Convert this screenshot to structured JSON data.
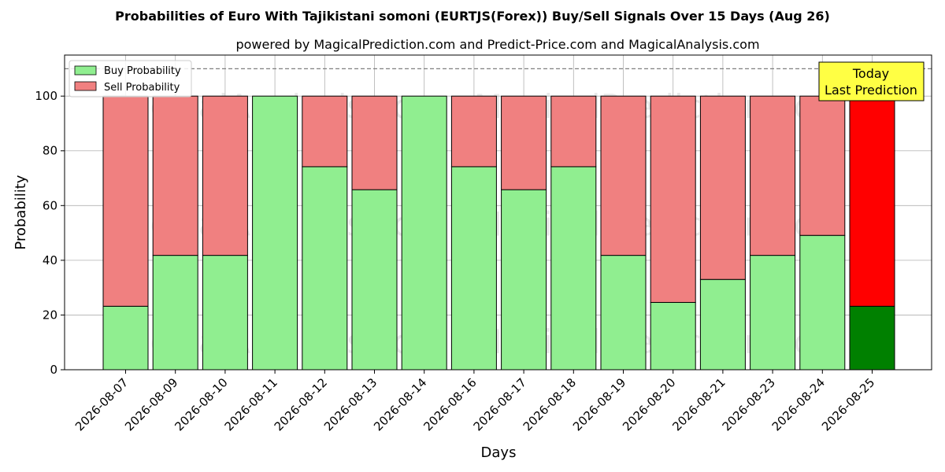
{
  "chart_data": {
    "type": "bar",
    "stacked": true,
    "title": "Probabilities of Euro With Tajikistani somoni (EURTJS(Forex)) Buy/Sell Signals Over 15 Days (Aug 26)",
    "subtitle": "powered by MagicalPrediction.com and Predict-Price.com and MagicalAnalysis.com",
    "xlabel": "Days",
    "ylabel": "Probability",
    "ylim": [
      0,
      115
    ],
    "yticks": [
      0,
      20,
      40,
      60,
      80,
      100
    ],
    "reference_line": 110,
    "grid": true,
    "legend_position": "top-left",
    "categories": [
      "2026-08-07",
      "2026-08-09",
      "2026-08-10",
      "2026-08-11",
      "2026-08-12",
      "2026-08-13",
      "2026-08-14",
      "2026-08-16",
      "2026-08-17",
      "2026-08-18",
      "2026-08-19",
      "2026-08-20",
      "2026-08-21",
      "2026-08-23",
      "2026-08-24",
      "2026-08-25"
    ],
    "series": [
      {
        "name": "Buy Probability",
        "color": "#90ee90",
        "highlight_color": "#008000",
        "values": [
          23.2,
          41.8,
          41.8,
          100,
          74.2,
          65.8,
          100,
          74.2,
          65.8,
          74.2,
          41.8,
          24.6,
          33.0,
          41.8,
          49.1,
          23.2
        ]
      },
      {
        "name": "Sell Probability",
        "color": "#f08080",
        "highlight_color": "#ff0000",
        "values": [
          76.8,
          58.2,
          58.2,
          0,
          25.8,
          34.2,
          0,
          25.8,
          34.2,
          25.8,
          58.2,
          75.4,
          67.0,
          58.2,
          50.9,
          76.8
        ]
      }
    ],
    "highlight_index": 15,
    "annotation": {
      "lines": [
        "Today",
        "Last Prediction"
      ],
      "background": "#ffff44",
      "position": "top-right"
    },
    "watermarks": [
      "MagicalAnalysis.com",
      "MagicalPrediction.com"
    ]
  }
}
